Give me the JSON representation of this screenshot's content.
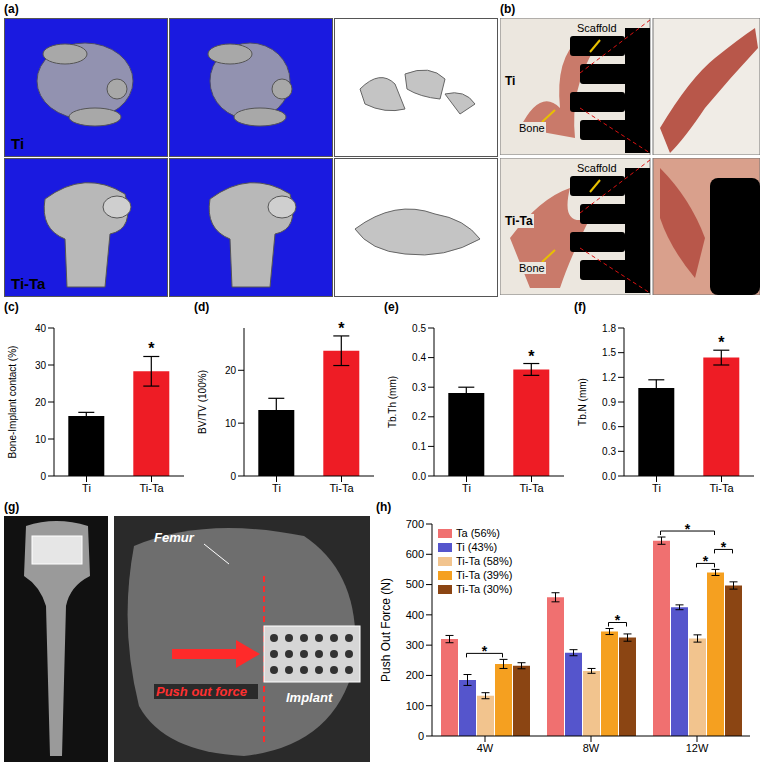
{
  "images": {
    "a": {
      "panel": "(a)",
      "rows": [
        "Ti",
        "Ti-Ta"
      ]
    },
    "b": {
      "panel": "(b)",
      "rows": [
        {
          "name": "Ti",
          "annotations": [
            "Scaffold",
            "Bone"
          ]
        },
        {
          "name": "Ti-Ta",
          "annotations": [
            "Scaffold",
            "Bone"
          ]
        }
      ]
    },
    "g": {
      "panel": "(g)",
      "annotations": [
        "Femur",
        "Push out force",
        "Implant"
      ]
    }
  },
  "chart_data": [
    {
      "panel": "(c)",
      "type": "bar",
      "y_label": "Bone-Implant contact (%)",
      "categories": [
        "Ti",
        "Ti-Ta"
      ],
      "values": [
        16.2,
        28.3
      ],
      "errors": [
        1.0,
        4.0
      ],
      "colors": [
        "#000000",
        "#ee1c25"
      ],
      "ylim": [
        0,
        40
      ],
      "yticks": [
        0,
        10,
        20,
        30,
        40
      ],
      "significance": [
        {
          "category": "Ti-Ta",
          "label": "*"
        }
      ]
    },
    {
      "panel": "(d)",
      "type": "bar",
      "y_label": "BV/TV (100%)",
      "categories": [
        "Ti",
        "Ti-Ta"
      ],
      "values": [
        12.5,
        23.7
      ],
      "errors": [
        2.2,
        2.8
      ],
      "colors": [
        "#000000",
        "#ee1c25"
      ],
      "ylim": [
        0,
        28
      ],
      "yticks": [
        0,
        10,
        20
      ],
      "significance": [
        {
          "category": "Ti-Ta",
          "label": "*"
        }
      ]
    },
    {
      "panel": "(e)",
      "type": "bar",
      "y_label": "Tb.Th (mm)",
      "categories": [
        "Ti",
        "Ti-Ta"
      ],
      "values": [
        0.28,
        0.36
      ],
      "errors": [
        0.02,
        0.02
      ],
      "colors": [
        "#000000",
        "#ee1c25"
      ],
      "ylim": [
        0,
        0.5
      ],
      "yticks": [
        {
          "value": 0,
          "label": "0.0"
        },
        0.1,
        0.2,
        0.3,
        0.4,
        0.5
      ],
      "significance": [
        {
          "category": "Ti-Ta",
          "label": "*"
        }
      ]
    },
    {
      "panel": "(f)",
      "type": "bar",
      "y_label": "Tb.N (mm)",
      "categories": [
        "Ti",
        "Ti-Ta"
      ],
      "values": [
        1.07,
        1.44
      ],
      "errors": [
        0.1,
        0.09
      ],
      "colors": [
        "#000000",
        "#ee1c25"
      ],
      "ylim": [
        0,
        1.8
      ],
      "yticks": [
        {
          "value": 0,
          "label": "0.0"
        },
        0.3,
        0.6,
        0.9,
        1.2,
        1.5,
        1.8
      ],
      "significance": [
        {
          "category": "Ti-Ta",
          "label": "*"
        }
      ]
    },
    {
      "panel": "(h)",
      "type": "bar",
      "y_label": "Push Out Force (N)",
      "categories": [
        "4W",
        "8W",
        "12W"
      ],
      "series": [
        {
          "name": "Ta (56%)",
          "color": "#f07070",
          "values": [
            320,
            458,
            645
          ],
          "errors": [
            12,
            15,
            12
          ]
        },
        {
          "name": "Ti (43%)",
          "color": "#5555cc",
          "values": [
            185,
            275,
            425
          ],
          "errors": [
            18,
            10,
            8
          ]
        },
        {
          "name": "Ti-Ta (58%)",
          "color": "#f2c48e",
          "values": [
            133,
            215,
            322
          ],
          "errors": [
            10,
            8,
            12
          ]
        },
        {
          "name": "Ti-Ta (39%)",
          "color": "#f5a020",
          "values": [
            238,
            345,
            540
          ],
          "errors": [
            15,
            10,
            10
          ]
        },
        {
          "name": "Ti-Ta (30%)",
          "color": "#8b4513",
          "values": [
            232,
            325,
            497
          ],
          "errors": [
            10,
            12,
            12
          ]
        }
      ],
      "ylim": [
        0,
        700
      ],
      "yticks": [
        0,
        100,
        200,
        300,
        400,
        500,
        600,
        700
      ],
      "legend": "upper left",
      "significance": [
        {
          "category": "4W",
          "from": "Ti (43%)",
          "to": "Ti-Ta (39%)",
          "label": "*"
        },
        {
          "category": "8W",
          "from": "Ti-Ta (39%)",
          "to": "Ti-Ta (30%)",
          "label": "*"
        },
        {
          "category": "12W",
          "from": "Ta (56%)",
          "to": "Ti-Ta (39%)",
          "label": "*"
        },
        {
          "category": "12W",
          "from": "Ti-Ta (58%)",
          "to": "Ti-Ta (39%)",
          "label": "*"
        },
        {
          "category": "12W",
          "from": "Ti-Ta (39%)",
          "to": "Ti-Ta (30%)",
          "label": "*"
        }
      ]
    }
  ]
}
